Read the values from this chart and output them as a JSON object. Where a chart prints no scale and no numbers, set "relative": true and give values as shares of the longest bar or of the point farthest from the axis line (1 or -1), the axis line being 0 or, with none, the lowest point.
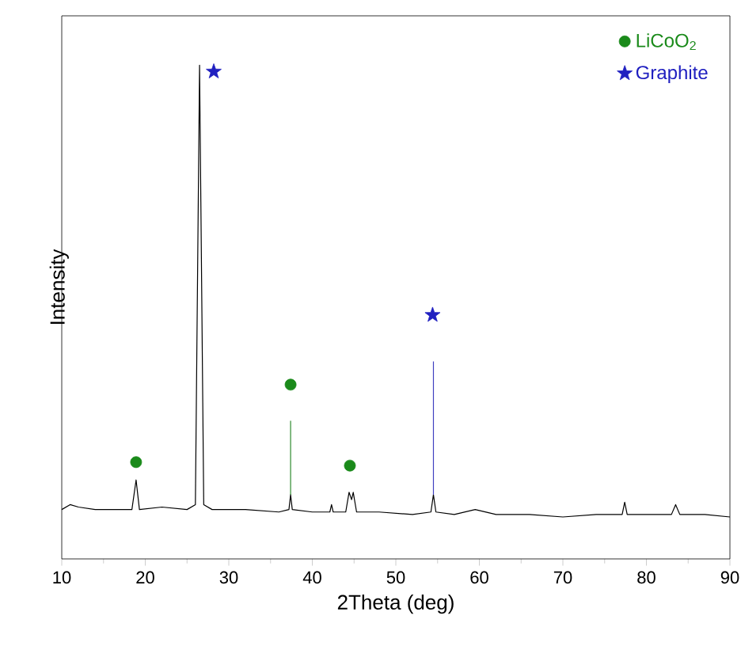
{
  "chart_data": {
    "type": "line",
    "xlabel": "2Theta (deg)",
    "ylabel": "Intensity",
    "relative": true,
    "xlim": [
      10,
      90
    ],
    "xticks": [
      10,
      20,
      30,
      40,
      50,
      60,
      70,
      80,
      90
    ],
    "legend": "top right",
    "marker": "none",
    "grid": false,
    "series": [
      {
        "color": "#000000",
        "x": [
          10,
          11,
          12,
          14,
          16,
          18.4,
          18.9,
          19.3,
          22,
          25,
          26.0,
          26.5,
          27.0,
          28,
          32,
          36,
          37.2,
          37.4,
          37.6,
          40,
          42.1,
          42.3,
          42.5,
          44.0,
          44.4,
          44.7,
          44.9,
          45.3,
          48,
          52,
          54.2,
          54.5,
          54.8,
          57,
          59.5,
          62,
          66,
          70,
          74,
          77.1,
          77.4,
          77.7,
          80,
          83.0,
          83.5,
          84.0,
          87,
          90
        ],
        "values": [
          0.1,
          0.11,
          0.105,
          0.1,
          0.1,
          0.1,
          0.16,
          0.1,
          0.105,
          0.1,
          0.11,
          1.0,
          0.11,
          0.1,
          0.1,
          0.095,
          0.1,
          0.13,
          0.1,
          0.095,
          0.095,
          0.11,
          0.095,
          0.095,
          0.135,
          0.12,
          0.135,
          0.095,
          0.095,
          0.09,
          0.095,
          0.13,
          0.095,
          0.09,
          0.1,
          0.09,
          0.09,
          0.085,
          0.09,
          0.09,
          0.115,
          0.09,
          0.09,
          0.09,
          0.11,
          0.09,
          0.09,
          0.085
        ]
      },
      {
        "color": "#2e8b2e",
        "x": [
          37.4,
          37.4
        ],
        "values": [
          0.13,
          0.28
        ]
      },
      {
        "color": "#4040c0",
        "x": [
          54.5,
          54.5
        ],
        "values": [
          0.13,
          0.4
        ]
      },
      {
        "type": "scatter",
        "name": "LiCoO$_{2}$",
        "color": "#1a8a1a",
        "marker": "circle",
        "x": [
          18.9,
          37.4,
          44.5
        ],
        "values": [
          0.196,
          0.353,
          0.189
        ]
      },
      {
        "type": "scatter",
        "name": "Graphite",
        "color": "#2020c0",
        "marker": "star",
        "x": [
          28.2,
          54.4
        ],
        "values": [
          0.987,
          0.494
        ]
      }
    ]
  }
}
